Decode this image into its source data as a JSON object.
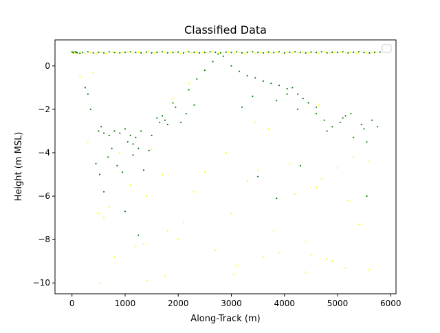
{
  "chart_data": {
    "type": "scatter",
    "title": "Classified Data",
    "xlabel": "Along-Track (m)",
    "ylabel": "Height (m MSL)",
    "xlim": [
      -320,
      6100
    ],
    "ylim": [
      -10.5,
      1.2
    ],
    "x_ticks": [
      0,
      1000,
      2000,
      3000,
      4000,
      5000,
      6000
    ],
    "y_ticks": [
      -10,
      -8,
      -6,
      -4,
      -2,
      0
    ],
    "x_tick_labels": [
      "0",
      "1000",
      "2000",
      "3000",
      "4000",
      "5000",
      "6000"
    ],
    "y_tick_labels": [
      "−10",
      "−8",
      "−6",
      "−4",
      "−2",
      "0"
    ],
    "grid": false,
    "legend": {
      "position": "top-right",
      "entries": []
    },
    "colors": {
      "class_green": "#008000",
      "class_yellow": "#ffff00"
    },
    "series": [
      {
        "color": "#008000",
        "x": [
          0,
          20,
          40,
          60,
          80,
          100,
          150,
          200,
          300,
          400,
          500,
          600,
          700,
          800,
          900,
          1000,
          1100,
          1200,
          1300,
          1400,
          1500,
          1600,
          1700,
          1800,
          1900,
          2000,
          2100,
          2200,
          2300,
          2400,
          2500,
          2600,
          2700,
          2800,
          2900,
          3000,
          3100,
          3200,
          3300,
          3400,
          3500,
          3600,
          3700,
          3800,
          3900,
          4000,
          4100,
          4200,
          4300,
          4400,
          4500,
          4600,
          4700,
          4800,
          4900,
          5000,
          5100,
          5200,
          5300,
          5400,
          5500,
          5600,
          5700,
          5800,
          2200,
          2350,
          2500,
          2650,
          2750,
          2850,
          3000,
          3150,
          3300,
          3450,
          3600,
          3750,
          3900,
          4050,
          4150,
          4250,
          4350,
          4450,
          4600,
          4750,
          4900,
          5050,
          5150,
          5250,
          5450,
          5550,
          5650,
          5750,
          500,
          550,
          600,
          700,
          800,
          900,
          1000,
          1100,
          1200,
          1300,
          1600,
          1650,
          1700,
          1750,
          1800,
          1900,
          1950,
          2050,
          250,
          300,
          350,
          1050,
          1150,
          1250,
          1500,
          450,
          520,
          600,
          680,
          750,
          850,
          950,
          1150,
          1350,
          1450,
          2150,
          2300,
          3200,
          3400,
          3850,
          4050,
          4250,
          4600,
          4800,
          5100,
          5300,
          5500,
          1000,
          1250,
          3500,
          3850,
          4300,
          5550
        ],
        "y": [
          0.65,
          0.62,
          0.6,
          0.65,
          0.63,
          0.6,
          0.58,
          0.62,
          0.65,
          0.6,
          0.63,
          0.6,
          0.65,
          0.62,
          0.6,
          0.63,
          0.65,
          0.62,
          0.6,
          0.64,
          0.6,
          0.63,
          0.65,
          0.6,
          0.62,
          0.64,
          0.6,
          0.65,
          0.63,
          0.6,
          0.62,
          0.65,
          0.63,
          0.6,
          0.64,
          0.62,
          0.65,
          0.6,
          0.63,
          0.65,
          0.62,
          0.6,
          0.64,
          0.62,
          0.65,
          0.6,
          0.63,
          0.65,
          0.62,
          0.6,
          0.64,
          0.62,
          0.65,
          0.6,
          0.63,
          0.62,
          0.65,
          0.6,
          0.63,
          0.65,
          0.62,
          0.6,
          0.63,
          0.64,
          -1.1,
          -0.6,
          -0.2,
          0.2,
          0.55,
          0.45,
          0.0,
          -0.25,
          -0.45,
          -0.55,
          -0.7,
          -0.8,
          -0.9,
          -1.05,
          -1.0,
          -1.3,
          -1.5,
          -1.7,
          -2.2,
          -2.5,
          -2.8,
          -2.6,
          -2.3,
          -2.2,
          -2.7,
          -3.5,
          -2.5,
          -2.8,
          -3.0,
          -2.8,
          -3.1,
          -3.2,
          -3.0,
          -3.1,
          -2.9,
          -3.2,
          -3.3,
          -3.0,
          -2.4,
          -2.6,
          -2.3,
          -2.5,
          -2.7,
          -1.7,
          -1.9,
          -2.6,
          -1.0,
          -1.3,
          -2.0,
          -3.5,
          -3.6,
          -3.8,
          -3.2,
          -4.5,
          -5.0,
          -5.8,
          -4.2,
          -3.8,
          -4.6,
          -4.9,
          -4.1,
          -4.8,
          -3.9,
          -2.2,
          -1.8,
          -1.9,
          -1.4,
          -1.6,
          -1.3,
          -2.0,
          -1.9,
          -3.0,
          -2.4,
          -3.3,
          -2.9,
          -6.7,
          -7.8,
          -5.1,
          -6.1,
          -4.6,
          -6.0
        ]
      },
      {
        "color": "#ffff00",
        "x": [
          50,
          150,
          250,
          350,
          450,
          550,
          650,
          750,
          850,
          950,
          1050,
          1150,
          1250,
          1350,
          1450,
          1550,
          1650,
          1750,
          1850,
          1950,
          2050,
          2150,
          2250,
          2350,
          2450,
          2550,
          2650,
          2750,
          2850,
          2950,
          3050,
          3150,
          3250,
          3350,
          3450,
          3550,
          3650,
          3750,
          3850,
          3950,
          4050,
          4150,
          4250,
          4350,
          4450,
          4550,
          4650,
          4750,
          4850,
          4950,
          5050,
          5150,
          5250,
          5350,
          5450,
          5550,
          5650,
          5750,
          500,
          1100,
          1700,
          2300,
          2900,
          3500,
          4100,
          4700,
          5300,
          700,
          1400,
          2100,
          3000,
          3800,
          4600,
          5200,
          300,
          900,
          1500,
          2500,
          3300,
          4200,
          5000,
          5600,
          600,
          1200,
          1800,
          2700,
          3600,
          4400,
          4800,
          5400,
          800,
          1350,
          2000,
          3100,
          3900,
          4500,
          4900,
          520,
          1420,
          1750,
          3050,
          4400,
          5150,
          5580,
          150,
          400,
          1900,
          2200,
          3450,
          3700,
          4650
        ],
        "y": [
          0.6,
          0.65,
          0.55,
          0.62,
          0.6,
          0.63,
          0.58,
          0.65,
          0.6,
          0.62,
          0.64,
          0.6,
          0.63,
          0.58,
          0.65,
          0.6,
          0.62,
          0.64,
          0.6,
          0.63,
          0.58,
          0.65,
          0.6,
          0.62,
          0.64,
          0.6,
          0.65,
          0.6,
          0.62,
          0.64,
          0.6,
          0.63,
          0.58,
          0.65,
          0.6,
          0.62,
          0.64,
          0.6,
          0.63,
          0.58,
          0.65,
          0.6,
          0.62,
          0.64,
          0.6,
          0.63,
          0.58,
          0.65,
          0.6,
          0.62,
          0.64,
          0.6,
          0.63,
          0.58,
          0.65,
          0.6,
          0.62,
          0.64,
          -6.8,
          -5.5,
          -5.0,
          -5.8,
          -4.0,
          -4.8,
          -4.5,
          -5.2,
          -4.2,
          -6.5,
          -6.0,
          -7.2,
          -6.8,
          -7.6,
          -5.6,
          -6.2,
          -3.5,
          -4.0,
          -3.8,
          -4.9,
          -5.3,
          -5.9,
          -4.7,
          -4.4,
          -7.0,
          -8.3,
          -7.6,
          -8.5,
          -8.8,
          -8.1,
          -8.9,
          -7.3,
          -8.8,
          -8.2,
          -8.0,
          -9.2,
          -8.6,
          -8.7,
          -9.0,
          -10.0,
          -9.9,
          -9.7,
          -9.6,
          -9.5,
          -9.3,
          -9.4,
          -0.5,
          -0.3,
          -1.5,
          -0.8,
          -2.6,
          -2.9,
          -1.8
        ]
      }
    ]
  }
}
